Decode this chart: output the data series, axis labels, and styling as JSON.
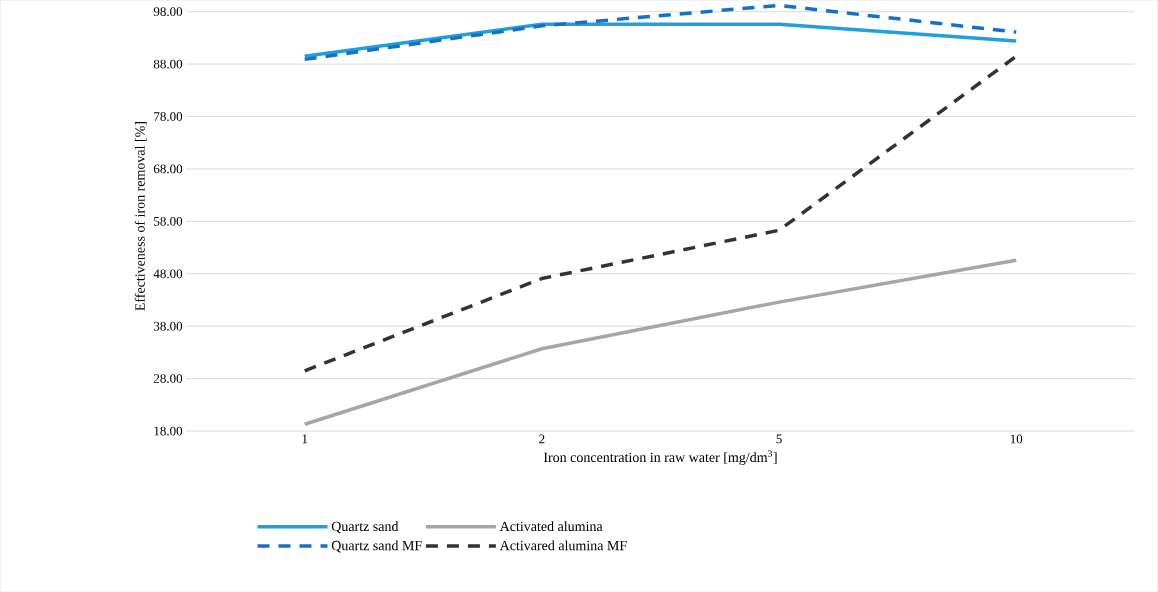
{
  "chart_data": {
    "type": "line",
    "xlabel": "Iron concentration in raw water [mg/dm$^{3}$]",
    "ylabel": "Effectiveness of iron removal [%]",
    "categories": [
      "1",
      "2",
      "5",
      "10"
    ],
    "series": [
      {
        "name": "Quartz sand",
        "color": "#1f9fdc",
        "line_style": "solid",
        "values": [
          89.5,
          95.6,
          95.6,
          92.4
        ]
      },
      {
        "name": "Activated alumina",
        "color": "#a6a6a6",
        "line_style": "solid",
        "values": [
          19.3,
          33.7,
          42.6,
          50.6
        ]
      },
      {
        "name": "Quartz sand MF",
        "color": "#1570c8",
        "line_style": "dashed",
        "values": [
          88.9,
          95.3,
          99.2,
          94.1
        ]
      },
      {
        "name": "Activared alumina MF",
        "color": "#333333",
        "line_style": "dashed",
        "values": [
          29.5,
          47.1,
          56.3,
          89.5
        ]
      }
    ],
    "ylim": [
      18,
      100
    ],
    "yticks": [
      {
        "value": 18,
        "label": "18.00"
      },
      {
        "value": 28,
        "label": "28.00"
      },
      {
        "value": 38,
        "label": "38.00"
      },
      {
        "value": 48,
        "label": "48.00"
      },
      {
        "value": 58,
        "label": "58.00"
      },
      {
        "value": 68,
        "label": "68.00"
      },
      {
        "value": 78,
        "label": "78.00"
      },
      {
        "value": 88,
        "label": "88.00"
      },
      {
        "value": 98,
        "label": "98.00"
      }
    ],
    "grid": "y",
    "legend": "bottom",
    "marker": "none"
  }
}
